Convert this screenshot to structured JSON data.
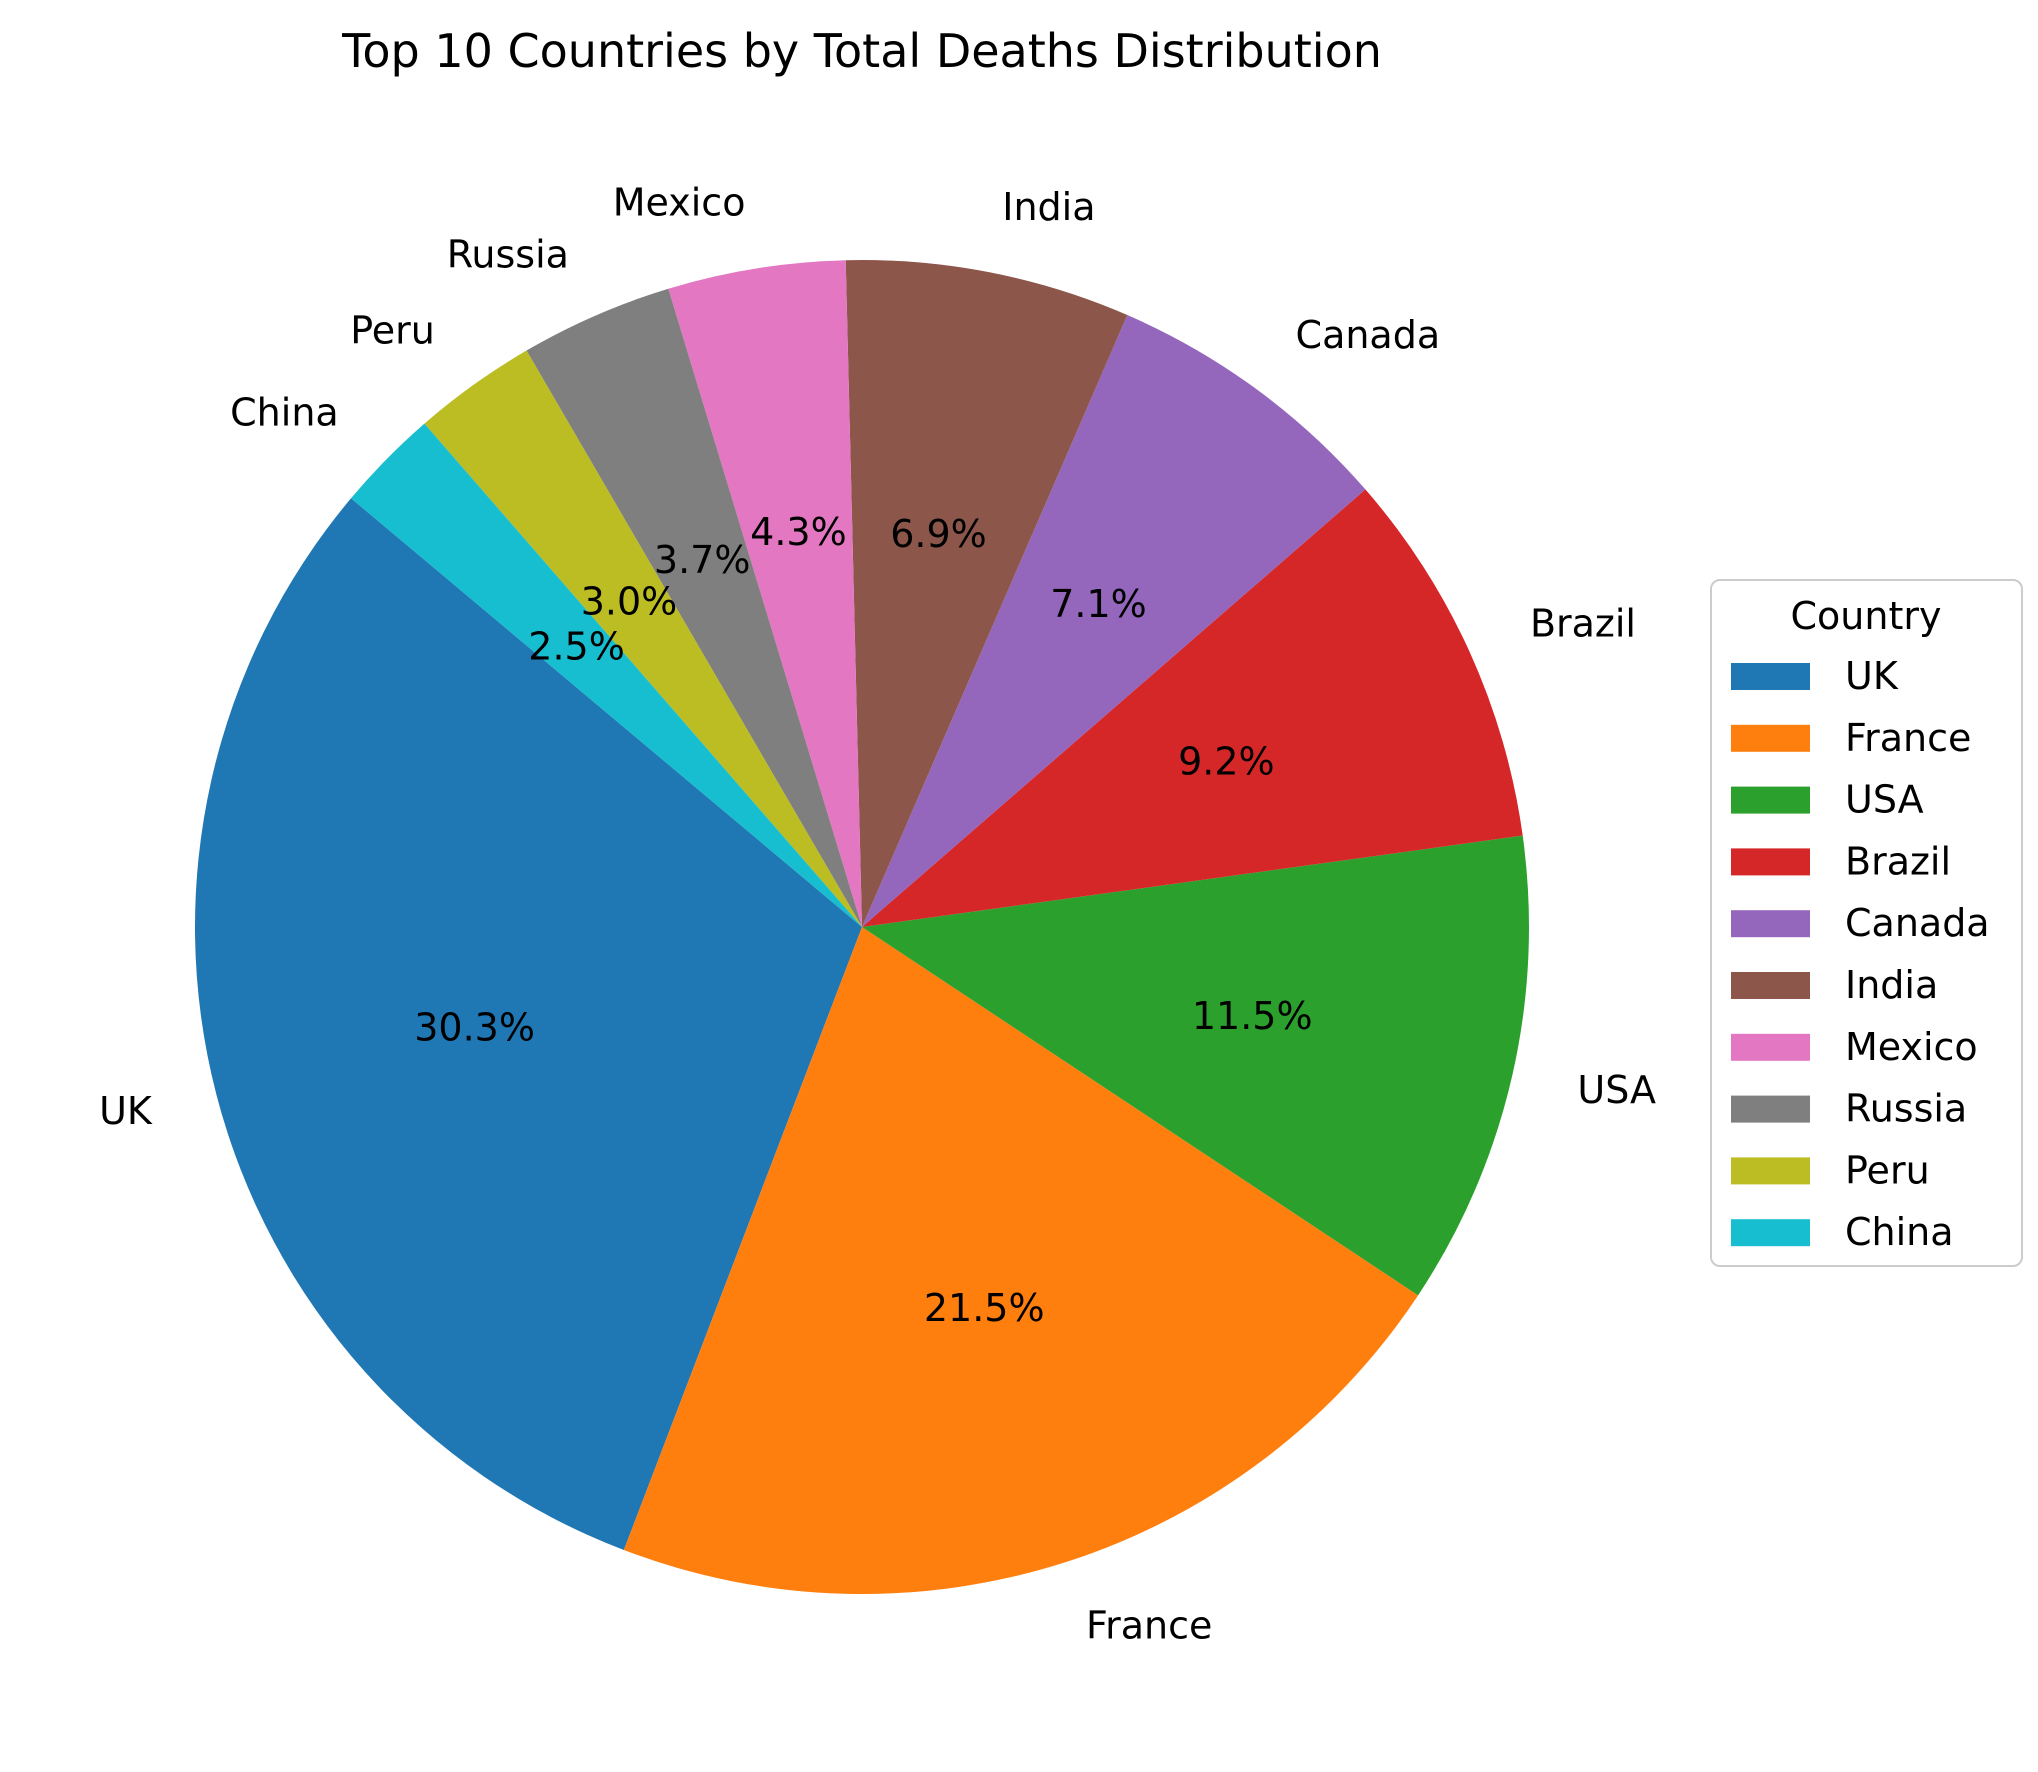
{
  "chart_data": {
    "type": "pie",
    "title": "Top 10 Countries by Total Deaths Distribution",
    "categories": [
      "UK",
      "France",
      "USA",
      "Brazil",
      "Canada",
      "India",
      "Mexico",
      "Russia",
      "Peru",
      "China"
    ],
    "values": [
      30.3,
      21.5,
      11.5,
      9.2,
      7.1,
      6.9,
      4.3,
      3.7,
      3.0,
      2.5
    ],
    "percent_labels": [
      "30.3%",
      "21.5%",
      "11.5%",
      "9.2%",
      "7.1%",
      "6.9%",
      "4.3%",
      "3.7%",
      "3.0%",
      "2.5%"
    ],
    "colors": [
      "#1f77b4",
      "#ff7f0e",
      "#2ca02c",
      "#d62728",
      "#9467bd",
      "#8c564b",
      "#e377c2",
      "#7f7f7f",
      "#bcbd22",
      "#17becf"
    ],
    "start_angle_deg": 140,
    "direction": "counterclockwise",
    "legend": {
      "title": "Country",
      "position": "center-right"
    }
  }
}
